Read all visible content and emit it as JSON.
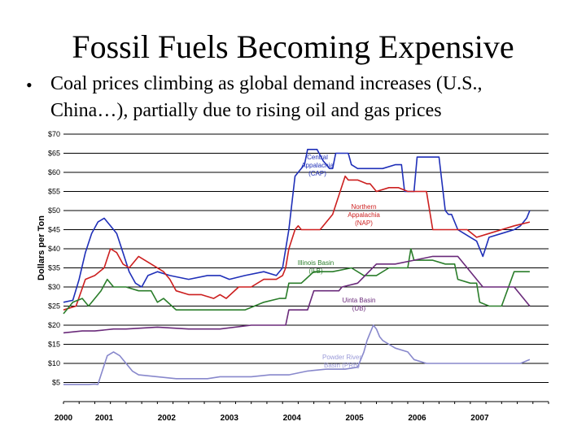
{
  "slide": {
    "title": "Fossil Fuels Becoming Expensive",
    "bullet_line1": "Coal prices climbing as global demand increases (U.S.,",
    "bullet_line2": "China…), partially due to rising oil and gas prices"
  },
  "chart_data": {
    "type": "line",
    "title": "",
    "xlabel": "",
    "ylabel": "Dollars per Ton",
    "xlim": [
      2000,
      2007.75
    ],
    "ylim": [
      0,
      70
    ],
    "grid": true,
    "y_tick_labels": [
      "$5",
      "$10",
      "$15",
      "$20",
      "$25",
      "$30",
      "$35",
      "$40",
      "$45",
      "$50",
      "$55",
      "$60",
      "$65",
      "$70"
    ],
    "y_tick_values": [
      5,
      10,
      15,
      20,
      25,
      30,
      35,
      40,
      45,
      50,
      55,
      60,
      65,
      70
    ],
    "x_tick_labels": [
      "2000",
      "2001",
      "2002",
      "2003",
      "2004",
      "2005",
      "2006",
      "2007"
    ],
    "x_tick_values": [
      2000,
      2000.65,
      2001.65,
      2002.65,
      2003.65,
      2004.65,
      2005.65,
      2006.65
    ],
    "series": [
      {
        "name": "Central Appalachia (CAP)",
        "label_lines": [
          "Central",
          "Appalachia",
          "(CAP)"
        ],
        "color": "#1f2fb8",
        "label_color": "#1f2fb8",
        "x": [
          2000,
          2000.15,
          2000.25,
          2000.35,
          2000.45,
          2000.55,
          2000.65,
          2000.75,
          2000.85,
          2000.95,
          2001.05,
          2001.15,
          2001.25,
          2001.35,
          2001.5,
          2001.7,
          2002,
          2002.3,
          2002.5,
          2002.65,
          2002.9,
          2003.2,
          2003.4,
          2003.5,
          2003.6,
          2003.7,
          2003.8,
          2003.85,
          2003.9,
          2004.0,
          2004.05,
          2004.15,
          2004.25,
          2004.3,
          2004.35,
          2004.55,
          2004.6,
          2004.7,
          2004.8,
          2004.9,
          2005.1,
          2005.3,
          2005.4,
          2005.45,
          2005.5,
          2005.6,
          2005.65,
          2005.7,
          2005.75,
          2005.9,
          2006.0,
          2006.1,
          2006.15,
          2006.2,
          2006.3,
          2006.4,
          2006.5,
          2006.6,
          2006.7,
          2006.8,
          2007.0,
          2007.2,
          2007.3,
          2007.4,
          2007.45
        ],
        "values": [
          26,
          26.5,
          32,
          39,
          44,
          47,
          48,
          46,
          44,
          39,
          34,
          31,
          30,
          33,
          34,
          33,
          32,
          33,
          33,
          32,
          33,
          34,
          33,
          35,
          45,
          59,
          61,
          62,
          66,
          66,
          66,
          63,
          61,
          61,
          65,
          65,
          62,
          61,
          61,
          61,
          61,
          62,
          62,
          55,
          55,
          55,
          64,
          64,
          64,
          64,
          64,
          50,
          49,
          49,
          45,
          44,
          43,
          42,
          38,
          43,
          44,
          45,
          46,
          48,
          50
        ]
      },
      {
        "name": "Northern Appalachia (NAP)",
        "label_lines": [
          "Northern",
          "Appalachia",
          "(NAP)"
        ],
        "color": "#cc1f1f",
        "label_color": "#cc1f1f",
        "x": [
          2000,
          2000.2,
          2000.35,
          2000.5,
          2000.65,
          2000.75,
          2000.85,
          2000.95,
          2001.05,
          2001.2,
          2001.4,
          2001.6,
          2001.7,
          2001.8,
          2002.0,
          2002.2,
          2002.4,
          2002.5,
          2002.6,
          2002.8,
          2003.0,
          2003.2,
          2003.4,
          2003.5,
          2003.55,
          2003.6,
          2003.7,
          2003.75,
          2003.8,
          2003.95,
          2004.1,
          2004.3,
          2004.5,
          2004.55,
          2004.65,
          2004.7,
          2004.85,
          2004.9,
          2005.0,
          2005.2,
          2005.35,
          2005.5,
          2005.6,
          2005.7,
          2005.8,
          2005.9,
          2006.0,
          2006.2,
          2006.4,
          2006.45,
          2006.6,
          2006.8,
          2007.0,
          2007.2,
          2007.45
        ],
        "values": [
          24,
          25,
          32,
          33,
          35,
          40,
          39,
          36,
          35,
          38,
          36,
          34,
          32,
          29,
          28,
          28,
          27,
          28,
          27,
          30,
          30,
          32,
          32,
          33,
          35,
          40,
          45,
          46,
          45,
          45,
          45,
          49,
          59,
          58,
          58,
          58,
          57,
          57,
          55,
          56,
          56,
          55,
          55,
          55,
          55,
          45,
          45,
          45,
          45,
          45,
          43,
          44,
          45,
          46,
          47
        ]
      },
      {
        "name": "Illinois Basin (ILB)",
        "label_lines": [
          "Illinois Basin",
          "(ILB)"
        ],
        "color": "#2a7d2a",
        "label_color": "#2a7d2a",
        "x": [
          2000,
          2000.15,
          2000.3,
          2000.4,
          2000.5,
          2000.6,
          2000.7,
          2000.8,
          2001.0,
          2001.2,
          2001.4,
          2001.5,
          2001.6,
          2001.8,
          2002.0,
          2002.3,
          2002.6,
          2002.9,
          2003.2,
          2003.45,
          2003.55,
          2003.6,
          2003.8,
          2004.0,
          2004.3,
          2004.6,
          2004.8,
          2005.0,
          2005.2,
          2005.4,
          2005.5,
          2005.55,
          2005.6,
          2005.75,
          2005.9,
          2006.1,
          2006.25,
          2006.3,
          2006.5,
          2006.6,
          2006.65,
          2006.8,
          2007.0,
          2007.2,
          2007.45
        ],
        "values": [
          23,
          26,
          27,
          25,
          27,
          29,
          32,
          30,
          30,
          29,
          29,
          26,
          27,
          24,
          24,
          24,
          24,
          24,
          26,
          27,
          27,
          31,
          31,
          34,
          34,
          35,
          33,
          33,
          35,
          35,
          35,
          40,
          37,
          37,
          37,
          36,
          36,
          32,
          31,
          31,
          26,
          25,
          25,
          34,
          34
        ]
      },
      {
        "name": "Uinta Basin (UB)",
        "label_lines": [
          "Uinta Basin",
          "(UB)"
        ],
        "color": "#6a2a7a",
        "label_color": "#6a2a7a",
        "x": [
          2000,
          2000.3,
          2000.5,
          2000.8,
          2001.0,
          2001.5,
          2002.0,
          2002.5,
          2003.0,
          2003.3,
          2003.55,
          2003.6,
          2003.9,
          2004.0,
          2004.4,
          2004.45,
          2004.7,
          2005.0,
          2005.3,
          2005.6,
          2005.9,
          2006.0,
          2006.3,
          2006.7,
          2007.0,
          2007.2,
          2007.45
        ],
        "values": [
          18,
          18.5,
          18.5,
          19,
          19,
          19.5,
          19,
          19,
          20,
          20,
          20,
          24,
          24,
          29,
          29,
          30,
          31,
          36,
          36,
          37,
          38,
          38,
          38,
          30,
          30,
          30,
          25
        ]
      },
      {
        "name": "Powder River Basin (PRB)",
        "label_lines": [
          "Powder River",
          "Basin (PRB)"
        ],
        "color": "#8888cc",
        "label_color": "#9a9ad8",
        "x": [
          2000,
          2000.2,
          2000.3,
          2000.4,
          2000.5,
          2000.55,
          2000.6,
          2000.7,
          2000.8,
          2000.9,
          2001.0,
          2001.1,
          2001.2,
          2001.5,
          2001.8,
          2002.0,
          2002.3,
          2002.5,
          2002.8,
          2003.0,
          2003.3,
          2003.6,
          2003.9,
          2004.2,
          2004.5,
          2004.7,
          2004.8,
          2004.85,
          2004.9,
          2004.95,
          2005.0,
          2005.05,
          2005.1,
          2005.2,
          2005.3,
          2005.5,
          2005.6,
          2005.8,
          2006.0,
          2006.2,
          2006.5,
          2007.0,
          2007.3,
          2007.45
        ],
        "values": [
          4.5,
          4.5,
          4.5,
          4.5,
          4.6,
          4.5,
          7,
          12,
          13,
          12,
          10,
          8,
          7,
          6.5,
          6,
          6,
          6,
          6.5,
          6.5,
          6.5,
          7,
          7,
          8,
          8.5,
          8.5,
          9,
          13,
          16,
          18,
          20,
          19,
          17,
          16,
          15,
          14,
          13,
          11,
          10,
          10,
          10,
          10,
          10,
          10,
          11
        ]
      }
    ]
  }
}
